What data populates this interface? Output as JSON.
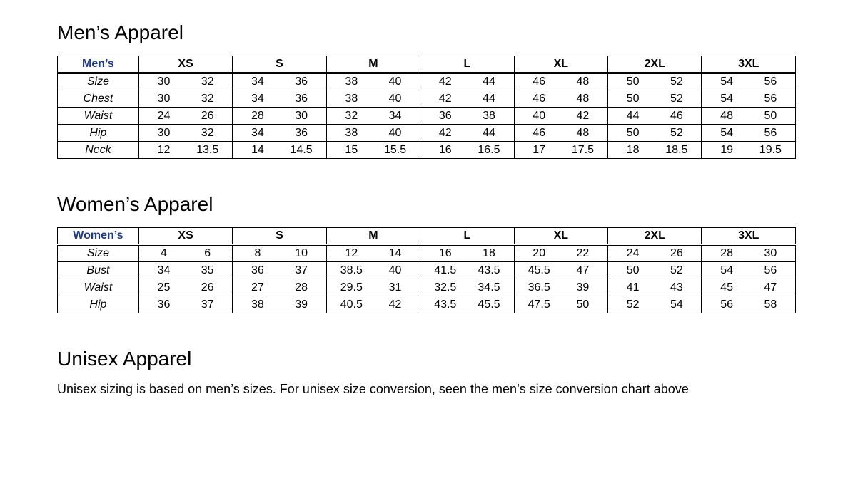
{
  "mens": {
    "title": "Men’s Apparel",
    "headerLabel": "Men’s",
    "sizes": [
      "XS",
      "S",
      "M",
      "L",
      "XL",
      "2XL",
      "3XL"
    ],
    "rows": [
      {
        "label": "Size",
        "values": [
          [
            "30",
            "32"
          ],
          [
            "34",
            "36"
          ],
          [
            "38",
            "40"
          ],
          [
            "42",
            "44"
          ],
          [
            "46",
            "48"
          ],
          [
            "50",
            "52"
          ],
          [
            "54",
            "56"
          ]
        ]
      },
      {
        "label": "Chest",
        "values": [
          [
            "30",
            "32"
          ],
          [
            "34",
            "36"
          ],
          [
            "38",
            "40"
          ],
          [
            "42",
            "44"
          ],
          [
            "46",
            "48"
          ],
          [
            "50",
            "52"
          ],
          [
            "54",
            "56"
          ]
        ]
      },
      {
        "label": "Waist",
        "values": [
          [
            "24",
            "26"
          ],
          [
            "28",
            "30"
          ],
          [
            "32",
            "34"
          ],
          [
            "36",
            "38"
          ],
          [
            "40",
            "42"
          ],
          [
            "44",
            "46"
          ],
          [
            "48",
            "50"
          ]
        ]
      },
      {
        "label": "Hip",
        "values": [
          [
            "30",
            "32"
          ],
          [
            "34",
            "36"
          ],
          [
            "38",
            "40"
          ],
          [
            "42",
            "44"
          ],
          [
            "46",
            "48"
          ],
          [
            "50",
            "52"
          ],
          [
            "54",
            "56"
          ]
        ]
      },
      {
        "label": "Neck",
        "values": [
          [
            "12",
            "13.5"
          ],
          [
            "14",
            "14.5"
          ],
          [
            "15",
            "15.5"
          ],
          [
            "16",
            "16.5"
          ],
          [
            "17",
            "17.5"
          ],
          [
            "18",
            "18.5"
          ],
          [
            "19",
            "19.5"
          ]
        ]
      }
    ]
  },
  "womens": {
    "title": "Women’s Apparel",
    "headerLabel": "Women’s",
    "sizes": [
      "XS",
      "S",
      "M",
      "L",
      "XL",
      "2XL",
      "3XL"
    ],
    "rows": [
      {
        "label": "Size",
        "values": [
          [
            "4",
            "6"
          ],
          [
            "8",
            "10"
          ],
          [
            "12",
            "14"
          ],
          [
            "16",
            "18"
          ],
          [
            "20",
            "22"
          ],
          [
            "24",
            "26"
          ],
          [
            "28",
            "30"
          ]
        ]
      },
      {
        "label": "Bust",
        "values": [
          [
            "34",
            "35"
          ],
          [
            "36",
            "37"
          ],
          [
            "38.5",
            "40"
          ],
          [
            "41.5",
            "43.5"
          ],
          [
            "45.5",
            "47"
          ],
          [
            "50",
            "52"
          ],
          [
            "54",
            "56"
          ]
        ]
      },
      {
        "label": "Waist",
        "values": [
          [
            "25",
            "26"
          ],
          [
            "27",
            "28"
          ],
          [
            "29.5",
            "31"
          ],
          [
            "32.5",
            "34.5"
          ],
          [
            "36.5",
            "39"
          ],
          [
            "41",
            "43"
          ],
          [
            "45",
            "47"
          ]
        ]
      },
      {
        "label": "Hip",
        "values": [
          [
            "36",
            "37"
          ],
          [
            "38",
            "39"
          ],
          [
            "40.5",
            "42"
          ],
          [
            "43.5",
            "45.5"
          ],
          [
            "47.5",
            "50"
          ],
          [
            "52",
            "54"
          ],
          [
            "56",
            "58"
          ]
        ]
      }
    ]
  },
  "unisex": {
    "title": "Unisex Apparel",
    "note": "Unisex sizing is based on men’s sizes.  For unisex size conversion, seen the men’s size conversion chart above"
  },
  "styling": {
    "header_text_color": "#1e3a8a",
    "border_color": "#000000",
    "background_color": "#ffffff",
    "title_fontsize": 28,
    "cell_fontsize": 16,
    "font_family": "Arial"
  }
}
